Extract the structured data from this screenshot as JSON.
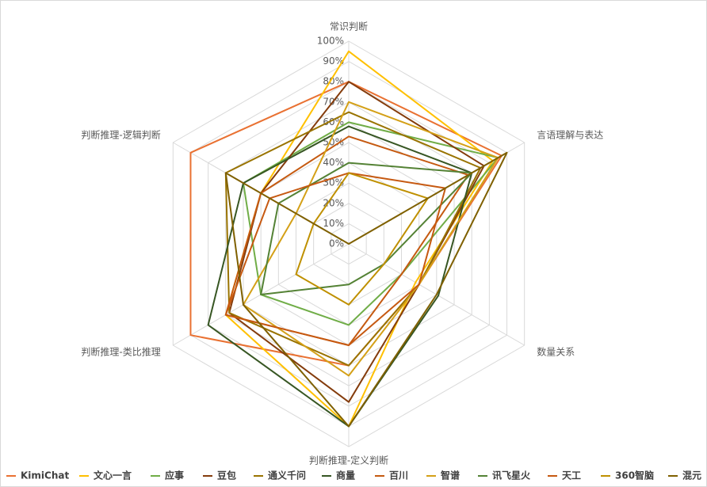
{
  "chart_data": {
    "type": "radar",
    "categories": [
      "常识判断",
      "言语理解与表达",
      "数量关系",
      "判断推理-定义判断",
      "判断推理-类比推理",
      "判断推理-逻辑判断"
    ],
    "ylim": [
      0,
      100
    ],
    "yticks": [
      {
        "value": 0,
        "label": "0%"
      },
      {
        "value": 10,
        "label": "10%"
      },
      {
        "value": 20,
        "label": "20%"
      },
      {
        "value": 30,
        "label": "30%"
      },
      {
        "value": 40,
        "label": "40%"
      },
      {
        "value": 50,
        "label": "50%"
      },
      {
        "value": 60,
        "label": "60%"
      },
      {
        "value": 70,
        "label": "70%"
      },
      {
        "value": 80,
        "label": "80%"
      },
      {
        "value": 90,
        "label": "90%"
      },
      {
        "value": 100,
        "label": "100%"
      }
    ],
    "grid": true,
    "series": [
      {
        "name": "KimiChat",
        "color": "#e97132",
        "values": [
          80,
          87,
          40,
          60,
          90,
          90
        ]
      },
      {
        "name": "文心一言",
        "color": "#ffc000",
        "values": [
          95,
          82,
          38,
          90,
          70,
          50
        ]
      },
      {
        "name": "应事",
        "color": "#70ad47",
        "values": [
          60,
          85,
          30,
          40,
          50,
          60
        ]
      },
      {
        "name": "豆包",
        "color": "#843c0c",
        "values": [
          80,
          77,
          40,
          78,
          68,
          50
        ]
      },
      {
        "name": "通义千问",
        "color": "#997300",
        "values": [
          65,
          75,
          40,
          60,
          68,
          70
        ]
      },
      {
        "name": "商量",
        "color": "#375623",
        "values": [
          58,
          70,
          51,
          90,
          80,
          60
        ]
      },
      {
        "name": "百川",
        "color": "#c55a11",
        "values": [
          53,
          68,
          30,
          50,
          70,
          50
        ]
      },
      {
        "name": "智谱",
        "color": "#d4a017",
        "values": [
          70,
          85,
          40,
          65,
          60,
          30
        ]
      },
      {
        "name": "讯飞星火",
        "color": "#548235",
        "values": [
          40,
          70,
          20,
          20,
          50,
          40
        ]
      },
      {
        "name": "天工",
        "color": "#c65911",
        "values": [
          35,
          55,
          40,
          50,
          70,
          45
        ]
      },
      {
        "name": "360智脑",
        "color": "#bf9000",
        "values": [
          35,
          45,
          20,
          30,
          30,
          20
        ]
      },
      {
        "name": "混元",
        "color": "#7f6000",
        "values": [
          0,
          90,
          50,
          90,
          60,
          70
        ]
      }
    ]
  }
}
